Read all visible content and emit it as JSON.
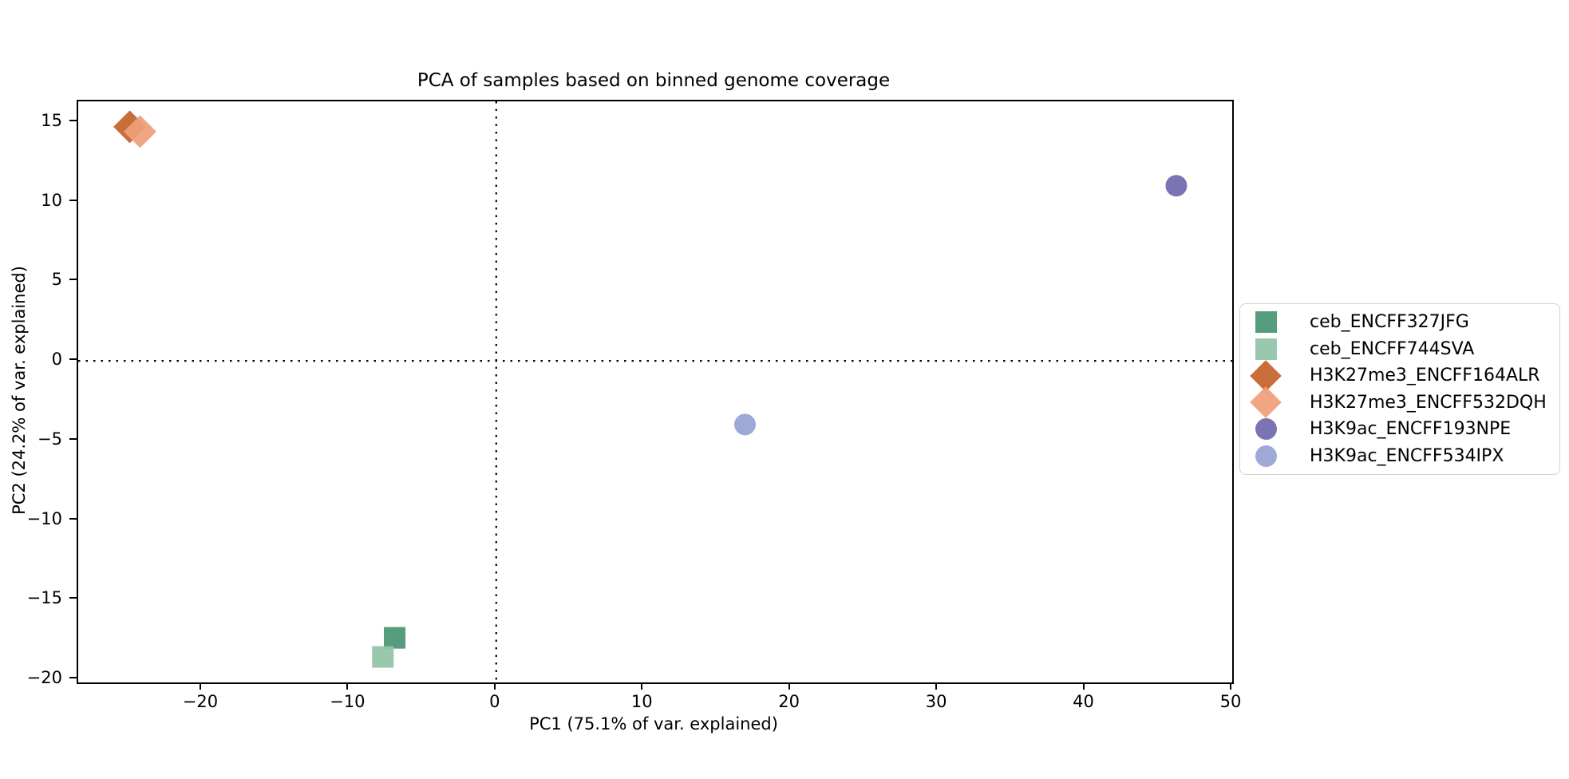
{
  "chart_data": {
    "type": "scatter",
    "title": "PCA of samples based on binned genome coverage",
    "xlabel": "PC1 (75.1% of var. explained)",
    "ylabel": "PC2 (24.2% of var. explained)",
    "xlim": [
      -28.4,
      50
    ],
    "ylim": [
      -20.2,
      16.3
    ],
    "x_ticks": [
      -20,
      -10,
      0,
      10,
      20,
      30,
      40,
      50
    ],
    "x_tick_labels": [
      "−20",
      "−10",
      "0",
      "10",
      "20",
      "30",
      "40",
      "50"
    ],
    "y_ticks": [
      15,
      10,
      5,
      0,
      -5,
      -10,
      -15,
      -20
    ],
    "y_tick_labels": [
      "15",
      "10",
      "5",
      "0",
      "−5",
      "−10",
      "−15",
      "−20"
    ],
    "grid": false,
    "legend_position": "center-right-outside",
    "reference_lines": [
      {
        "axis": "x",
        "value": 0,
        "style": "dotted",
        "color": "#000000"
      },
      {
        "axis": "y",
        "value": 0,
        "style": "dotted",
        "color": "#000000"
      }
    ],
    "series": [
      {
        "name": "ceb_ENCFF327JFG",
        "marker": "square",
        "color": "#479571",
        "points": [
          [
            -6.9,
            -17.4
          ]
        ]
      },
      {
        "name": "ceb_ENCFF744SVA",
        "marker": "square",
        "color": "#8fc4a5",
        "points": [
          [
            -7.7,
            -18.6
          ]
        ]
      },
      {
        "name": "H3K27me3_ENCFF164ALR",
        "marker": "diamond",
        "color": "#c4622a",
        "points": [
          [
            -24.9,
            14.7
          ]
        ]
      },
      {
        "name": "H3K27me3_ENCFF532DQH",
        "marker": "diamond",
        "color": "#ef9e78",
        "points": [
          [
            -24.2,
            14.4
          ]
        ]
      },
      {
        "name": "H3K9ac_ENCFF193NPE",
        "marker": "circle",
        "color": "#6f68ab",
        "points": [
          [
            46.2,
            11.0
          ]
        ]
      },
      {
        "name": "H3K9ac_ENCFF534IPX",
        "marker": "circle",
        "color": "#96a2d2",
        "points": [
          [
            16.9,
            -4.0
          ]
        ]
      }
    ],
    "colors": {
      "spine": "#000000",
      "tick": "#000000",
      "legend_border": "#d2d2d2",
      "background": "#ffffff"
    }
  }
}
